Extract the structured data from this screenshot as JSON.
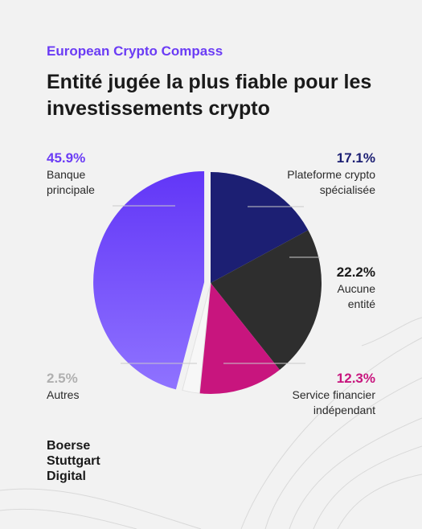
{
  "header": {
    "kicker": "European Crypto Compass",
    "title": "Entité jugée la plus fiable pour les investissements crypto"
  },
  "chart_data": {
    "type": "pie",
    "slices": [
      {
        "label": "Plateforme crypto spécialisée",
        "value": 17.1,
        "display": "17.1%",
        "color": "#1c1f73"
      },
      {
        "label": "Aucune entité",
        "value": 22.2,
        "display": "22.2%",
        "color": "#2e2e2e"
      },
      {
        "label": "Service financier indépendant",
        "value": 12.3,
        "display": "12.3%",
        "color": "#c8157e"
      },
      {
        "label": "Autres",
        "value": 2.5,
        "display": "2.5%",
        "color": "#f7f7f7"
      },
      {
        "label": "Banque principale",
        "value": 45.9,
        "display": "45.9%",
        "color": "#7a54ff"
      }
    ],
    "label_colors": {
      "Banque principale": "#6b3cf5",
      "Plateforme crypto spécialisée": "#1c1f73",
      "Aucune entité": "#1a1a1a",
      "Service financier indépendant": "#c8157e",
      "Autres": "#b0b0b0"
    },
    "exploded_slice": "Banque principale"
  },
  "footer": {
    "brand_lines": [
      "Boerse",
      "Stuttgart",
      "Digital"
    ]
  }
}
